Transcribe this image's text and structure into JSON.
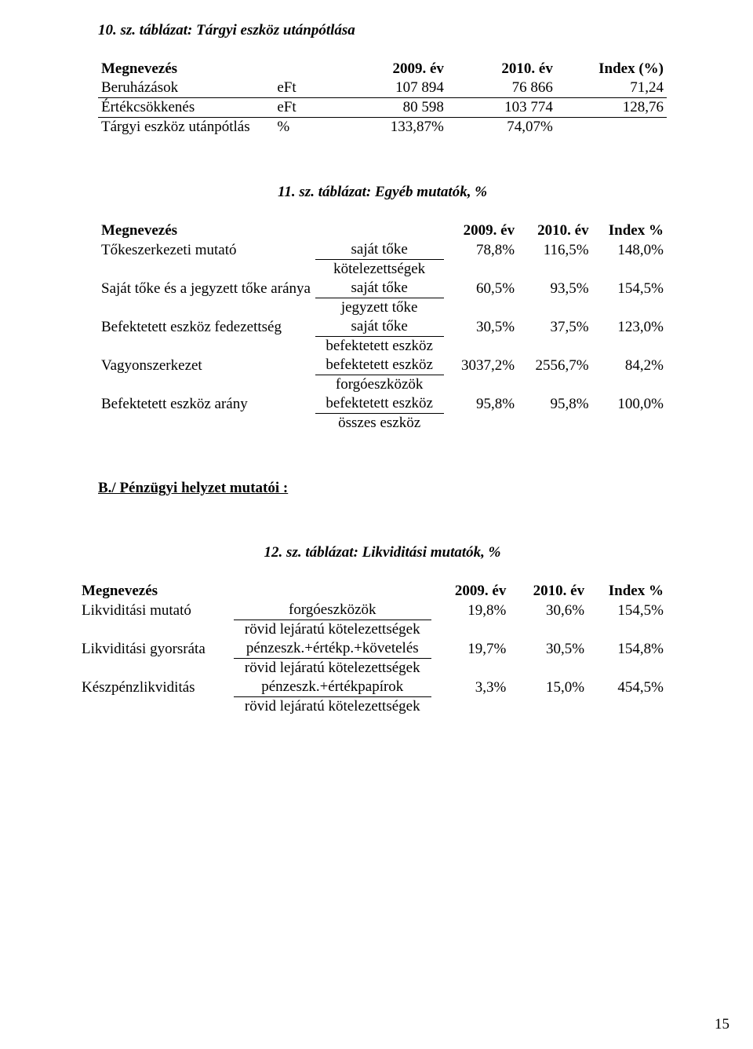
{
  "t10": {
    "title": "10. sz. táblázat: Tárgyi eszköz utánpótlása",
    "header": {
      "label": "Megnevezés",
      "y1": "2009. év",
      "y2": "2010. év",
      "idx": "Index (%)"
    },
    "rows": [
      {
        "label": "Beruházások",
        "unit": "eFt",
        "y1": "107 894",
        "y2": "76 866",
        "idx": "71,24"
      },
      {
        "label": "Értékcsökkenés",
        "unit": "eFt",
        "y1": "80 598",
        "y2": "103 774",
        "idx": "128,76"
      },
      {
        "label": "Tárgyi eszköz utánpótlás",
        "unit": "%",
        "y1": "133,87%",
        "y2": "74,07%",
        "idx": ""
      }
    ]
  },
  "t11": {
    "title": "11. sz. táblázat: Egyéb mutatók, %",
    "header": {
      "label": "Megnevezés",
      "y1": "2009. év",
      "y2": "2010. év",
      "idx": "Index %"
    },
    "rows": [
      {
        "label": "Tőkeszerkezeti mutató",
        "num": "saját tőke",
        "den": "kötelezettségek",
        "y1": "78,8%",
        "y2": "116,5%",
        "idx": "148,0%"
      },
      {
        "label": "Saját tőke és a jegyzett tőke aránya",
        "num": "saját tőke",
        "den": "jegyzett tőke",
        "y1": "60,5%",
        "y2": "93,5%",
        "idx": "154,5%"
      },
      {
        "label": "Befektetett eszköz fedezettség",
        "num": "saját tőke",
        "den": "befektetett eszköz",
        "y1": "30,5%",
        "y2": "37,5%",
        "idx": "123,0%"
      },
      {
        "label": "Vagyonszerkezet",
        "num": "befektetett eszköz",
        "den": "forgóeszközök",
        "y1": "3037,2%",
        "y2": "2556,7%",
        "idx": "84,2%"
      },
      {
        "label": "Befektetett eszköz arány",
        "num": "befektetett eszköz",
        "den": "összes eszköz",
        "y1": "95,8%",
        "y2": "95,8%",
        "idx": "100,0%"
      }
    ]
  },
  "section_b": "B./ Pénzügyi helyzet mutatói :",
  "t12": {
    "title": "12. sz. táblázat: Likviditási mutatók, %",
    "header": {
      "label": "Megnevezés",
      "y1": "2009. év",
      "y2": "2010. év",
      "idx": "Index %"
    },
    "rows": [
      {
        "label": "Likviditási mutató",
        "num": "forgóeszközök",
        "den": "rövid lejáratú kötelezettségek",
        "y1": "19,8%",
        "y2": "30,6%",
        "idx": "154,5%"
      },
      {
        "label": "Likviditási gyorsráta",
        "num": "pénzeszk.+értékp.+követelés",
        "den": "rövid lejáratú kötelezettségek",
        "y1": "19,7%",
        "y2": "30,5%",
        "idx": "154,8%"
      },
      {
        "label": "Készpénzlikviditás",
        "num": "pénzeszk.+értékpapírok",
        "den": "rövid lejáratú kötelezettségek",
        "y1": "3,3%",
        "y2": "15,0%",
        "idx": "454,5%"
      }
    ]
  },
  "pagenum": "15"
}
